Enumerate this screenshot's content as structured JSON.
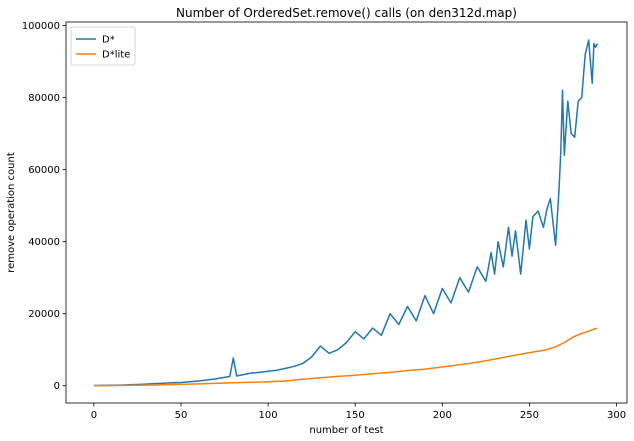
{
  "chart_data": {
    "type": "line",
    "title": "Number of OrderedSet.remove() calls (on den312d.map)",
    "xlabel": "number of test",
    "ylabel": "remove operation count",
    "xlim": [
      -16,
      306
    ],
    "ylim": [
      -4800,
      101000
    ],
    "xticks": [
      0,
      50,
      100,
      150,
      200,
      250,
      300
    ],
    "yticks": [
      0,
      20000,
      40000,
      60000,
      80000,
      100000
    ],
    "grid": false,
    "legend_position": "top-left",
    "series": [
      {
        "name": "D*",
        "color": "#1f77b4",
        "x": [
          0,
          5,
          10,
          15,
          20,
          25,
          30,
          35,
          40,
          45,
          50,
          55,
          60,
          65,
          70,
          75,
          78,
          80,
          82,
          85,
          90,
          95,
          100,
          105,
          110,
          115,
          120,
          125,
          130,
          135,
          140,
          145,
          150,
          155,
          160,
          165,
          170,
          175,
          180,
          185,
          190,
          195,
          200,
          205,
          210,
          215,
          220,
          225,
          228,
          230,
          232,
          235,
          238,
          240,
          242,
          245,
          248,
          250,
          252,
          255,
          258,
          260,
          262,
          265,
          267,
          268,
          269,
          270,
          272,
          274,
          276,
          278,
          280,
          282,
          284,
          285,
          286,
          287,
          288,
          289
        ],
        "values": [
          50,
          80,
          120,
          180,
          250,
          350,
          450,
          600,
          700,
          800,
          900,
          1100,
          1300,
          1600,
          1900,
          2300,
          2600,
          7700,
          2700,
          3000,
          3500,
          3700,
          4000,
          4300,
          4800,
          5400,
          6200,
          8000,
          11000,
          9000,
          10000,
          12000,
          15000,
          13000,
          16000,
          14000,
          20000,
          17000,
          22000,
          18000,
          25000,
          20000,
          27000,
          23000,
          30000,
          26000,
          33000,
          29000,
          37000,
          31000,
          40000,
          33000,
          44000,
          36000,
          43000,
          31000,
          46000,
          38000,
          47000,
          48500,
          44000,
          49000,
          52000,
          39000,
          55000,
          65000,
          82000,
          64000,
          79000,
          70000,
          69000,
          79000,
          80000,
          92000,
          96000,
          90000,
          84000,
          95000,
          94000,
          95000
        ]
      },
      {
        "name": "D*lite",
        "color": "#ff7f0e",
        "x": [
          0,
          20,
          40,
          60,
          80,
          100,
          110,
          120,
          130,
          140,
          150,
          160,
          170,
          180,
          190,
          200,
          210,
          220,
          230,
          240,
          250,
          260,
          265,
          270,
          275,
          280,
          285,
          289
        ],
        "values": [
          0,
          100,
          250,
          500,
          800,
          1100,
          1300,
          1800,
          2200,
          2600,
          2900,
          3300,
          3700,
          4200,
          4600,
          5200,
          5800,
          6500,
          7400,
          8300,
          9200,
          10000,
          10800,
          12000,
          13500,
          14500,
          15300,
          16000
        ]
      }
    ]
  }
}
